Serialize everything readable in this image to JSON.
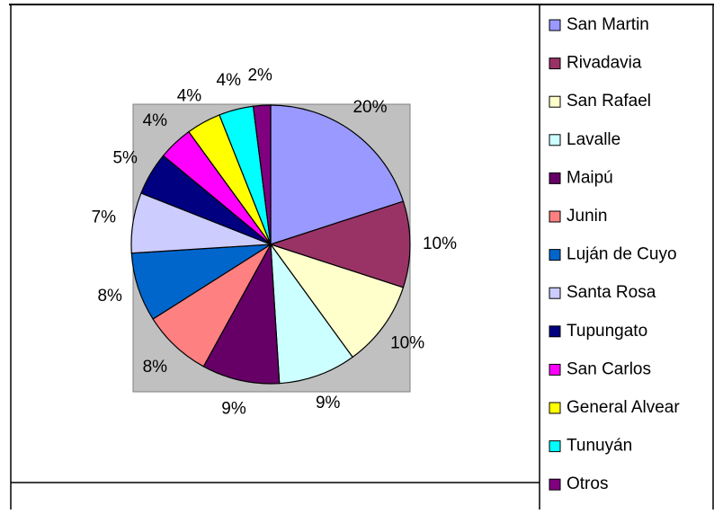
{
  "chart_data": {
    "type": "pie",
    "categories": [
      "San Martin",
      "Rivadavia",
      "San Rafael",
      "Lavalle",
      "Maipú",
      "Junin",
      "Luján de Cuyo",
      "Santa Rosa",
      "Tupungato",
      "San Carlos",
      "General Alvear",
      "Tunuyán",
      "Otros"
    ],
    "values": [
      20,
      10,
      10,
      9,
      9,
      8,
      8,
      7,
      5,
      4,
      4,
      4,
      2
    ],
    "value_labels": [
      "20%",
      "10%",
      "10%",
      "9%",
      "9%",
      "8%",
      "8%",
      "7%",
      "5%",
      "4%",
      "4%",
      "4%",
      "2%"
    ],
    "colors": [
      "#9999FF",
      "#993366",
      "#FFFFCC",
      "#CCFFFF",
      "#660066",
      "#FF8080",
      "#0066CC",
      "#CCCCFF",
      "#000080",
      "#FF00FF",
      "#FFFF00",
      "#00FFFF",
      "#800080"
    ],
    "legend": "right"
  }
}
